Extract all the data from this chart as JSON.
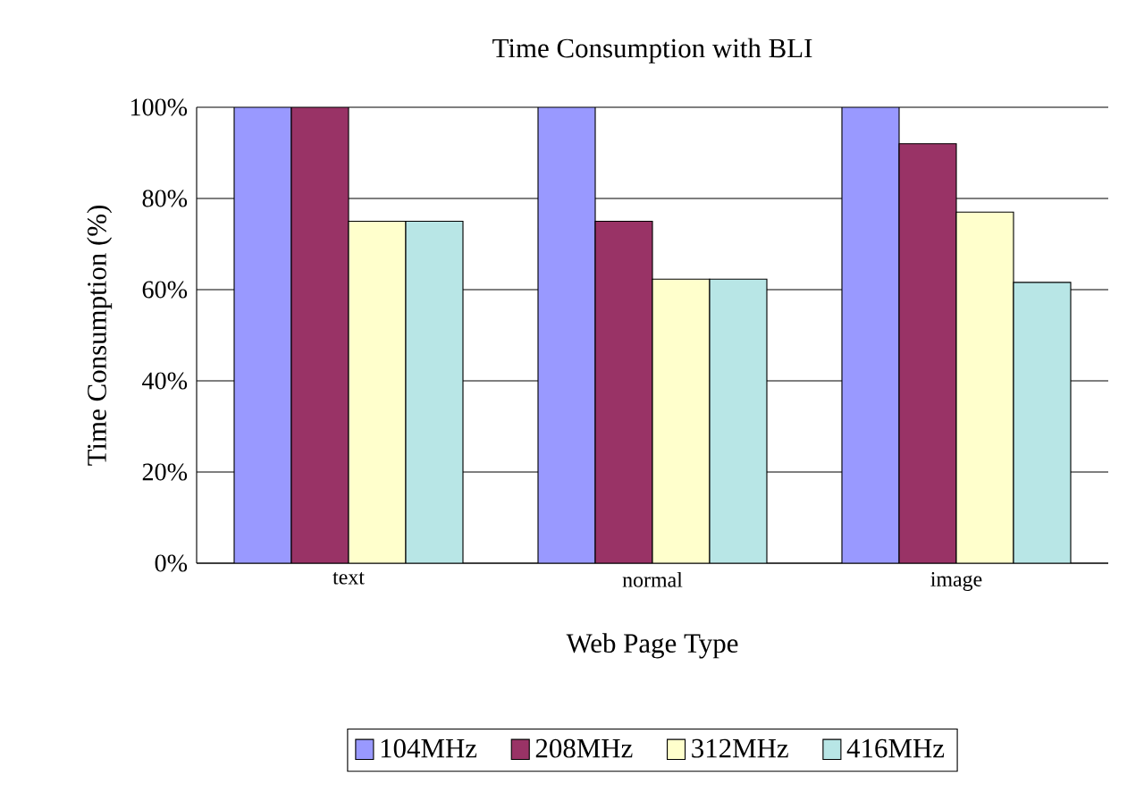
{
  "chart_data": {
    "type": "bar",
    "title": "Time Consumption with BLI",
    "xlabel": "Web Page Type",
    "ylabel": "Time Consumption (%)",
    "categories": [
      "text",
      "normal",
      "image"
    ],
    "series": [
      {
        "name": "104MHz",
        "color": "#9999ff",
        "values": [
          100,
          100,
          100
        ]
      },
      {
        "name": "208MHz",
        "color": "#993366",
        "values": [
          100,
          75,
          92
        ]
      },
      {
        "name": "312MHz",
        "color": "#ffffcc",
        "values": [
          75,
          62.3,
          77
        ]
      },
      {
        "name": "416MHz",
        "color": "#b8e6e6",
        "values": [
          75,
          62.3,
          61.6
        ]
      }
    ],
    "ylim": [
      0,
      100
    ],
    "yticks": [
      {
        "value": 0,
        "label": "0%"
      },
      {
        "value": 20,
        "label": "20%"
      },
      {
        "value": 40,
        "label": "40%"
      },
      {
        "value": 60,
        "label": "60%"
      },
      {
        "value": 80,
        "label": "80%"
      },
      {
        "value": 100,
        "label": "100%"
      }
    ],
    "grid": "y",
    "legend": "bottom"
  }
}
